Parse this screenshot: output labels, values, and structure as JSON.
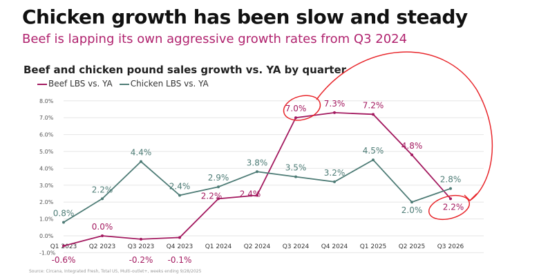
{
  "title": "Chicken growth has been slow and steady",
  "subtitle": "Beef is lapping its own aggressive growth rates from Q3 2024",
  "source": "Source: Circana, Integrated Fresh, Total US, Multi-outlet+, weeks ending 9/28/2025",
  "colors": {
    "beef": "#a3195f",
    "chicken": "#4e7c76",
    "annotation": "#e8262b"
  },
  "chart_data": {
    "type": "line",
    "title": "Beef and chicken pound sales growth vs. YA by quarter",
    "categories": [
      "Q1 2023",
      "Q2 2023",
      "Q3 2023",
      "Q4 2023",
      "Q1 2024",
      "Q2 2024",
      "Q3 2024",
      "Q4 2024",
      "Q1 2025",
      "Q2 2025",
      "Q3 2026"
    ],
    "yticks": [
      "-1.0%",
      "0.0%",
      "1.0%",
      "2.0%",
      "3.0%",
      "4.0%",
      "5.0%",
      "6.0%",
      "7.0%",
      "8.0%"
    ],
    "ylim": [
      -1,
      8
    ],
    "grid": true,
    "legend": "top-left",
    "series": [
      {
        "name": "Beef LBS vs. YA",
        "values": [
          -0.6,
          0.0,
          -0.2,
          -0.1,
          2.2,
          2.4,
          7.0,
          7.3,
          7.2,
          4.8,
          2.2
        ],
        "labels": [
          "-0.6%",
          "0.0%",
          "-0.2%",
          "-0.1%",
          "2.2%",
          "2.4%",
          "7.0%",
          "7.3%",
          "7.2%",
          "4.8%",
          "2.2%"
        ]
      },
      {
        "name": "Chicken LBS vs. YA",
        "values": [
          0.8,
          2.2,
          4.4,
          2.4,
          2.9,
          3.8,
          3.5,
          3.2,
          4.5,
          2.0,
          2.8
        ],
        "labels": [
          "0.8%",
          "2.2%",
          "4.4%",
          "2.4%",
          "2.9%",
          "3.8%",
          "3.5%",
          "3.2%",
          "4.5%",
          "2.0%",
          "2.8%"
        ]
      }
    ],
    "annotations": [
      "circle around beef Q3 2024 7.0%",
      "circle around beef Q3 2026 2.2%",
      "arrow from Q3 2024 to Q3 2026"
    ]
  }
}
